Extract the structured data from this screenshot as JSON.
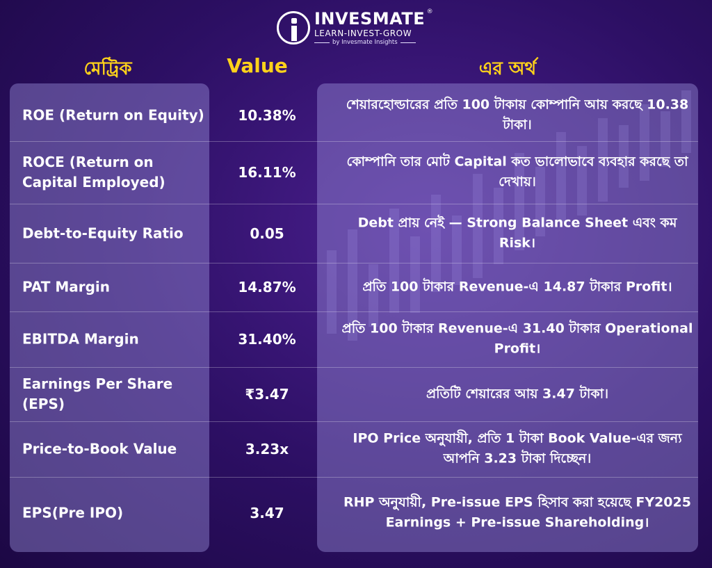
{
  "brand": {
    "name": "INVESMATE",
    "registered_mark": "®",
    "tagline": "LEARN-INVEST-GROW",
    "byline": "by Invesmate Insights"
  },
  "headers": {
    "metric": "মেট্রিক",
    "value": "Value",
    "meaning": "এর অর্থ"
  },
  "rows": [
    {
      "metric": "ROE (Return on Equity)",
      "value": "10.38%",
      "meaning": "শেয়ারহোল্ডারের প্রতি 100 টাকায় কোম্পানি আয় করছে 10.38 টাকা।"
    },
    {
      "metric": "ROCE (Return on Capital Employed)",
      "value": "16.11%",
      "meaning": "কোম্পানি তার মোট Capital কত ভালোভাবে ব্যবহার করছে তা দেখায়।"
    },
    {
      "metric": "Debt-to-Equity Ratio",
      "value": "0.05",
      "meaning": "Debt প্রায় নেই — Strong Balance Sheet এবং কম Risk।"
    },
    {
      "metric": "PAT Margin",
      "value": "14.87%",
      "meaning": "প্রতি 100 টাকার Revenue-এ 14.87 টাকার Profit।"
    },
    {
      "metric": "EBITDA Margin",
      "value": "31.40%",
      "meaning": "প্রতি 100 টাকার Revenue-এ 31.40 টাকার Operational Profit।"
    },
    {
      "metric": "Earnings Per Share (EPS)",
      "value": "₹3.47",
      "meaning": "প্রতিটি শেয়ারের আয় 3.47 টাকা।"
    },
    {
      "metric": "Price-to-Book Value",
      "value": "3.23x",
      "meaning": "IPO Price অনুযায়ী, প্রতি 1 টাকা Book Value-এর জন্য আপনি 3.23 টাকা দিচ্ছেন।"
    },
    {
      "metric": "EPS(Pre IPO)",
      "value": "3.47",
      "meaning": "RHP অনুযায়ী, Pre-issue EPS হিসাব করা হয়েছে FY2025 Earnings + Pre-issue Shareholding।"
    }
  ]
}
